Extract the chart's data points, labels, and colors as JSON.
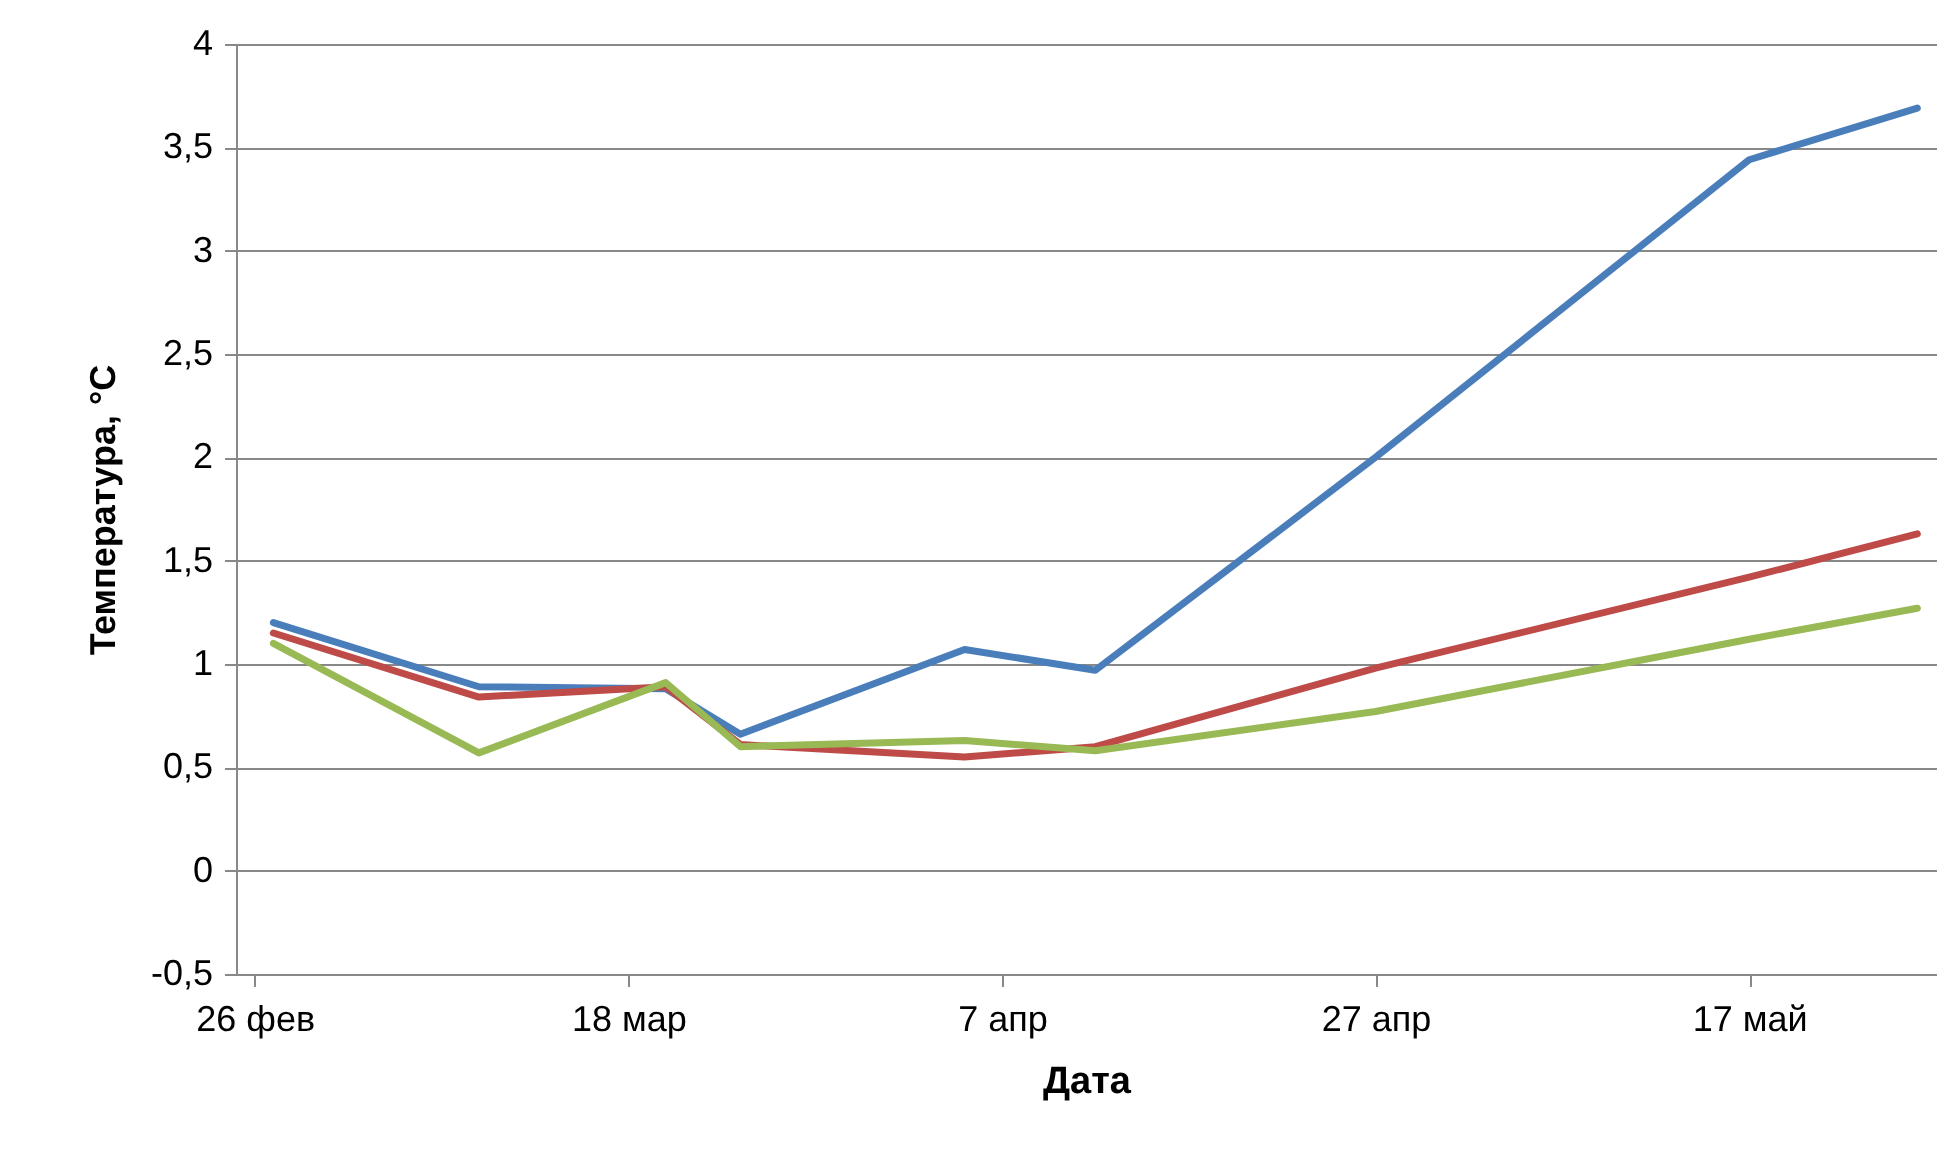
{
  "chart_data": {
    "type": "line",
    "xlabel": "Дата",
    "ylabel": "Температура, °С",
    "x": [
      "--02-27",
      "--03-10",
      "--03-20",
      "--03-24",
      "--04-05",
      "--04-12",
      "--04-27",
      "--05-17",
      "--05-26"
    ],
    "series": [
      {
        "color": "#4a7ebb",
        "values": [
          1.2,
          0.89,
          0.88,
          0.66,
          1.07,
          0.97,
          2.0,
          3.44,
          3.69
        ]
      },
      {
        "color": "#be4b48",
        "values": [
          1.15,
          0.84,
          0.89,
          0.61,
          0.55,
          0.6,
          0.98,
          1.42,
          1.63
        ]
      },
      {
        "color": "#98b954",
        "values": [
          1.1,
          0.57,
          0.91,
          0.6,
          0.63,
          0.58,
          0.77,
          1.12,
          1.27
        ]
      }
    ],
    "xlim": [
      "--02-25",
      "--05-27"
    ],
    "xticks": [
      {
        "value": "--02-26",
        "label": "26 фев"
      },
      {
        "value": "--03-18",
        "label": "18 мар"
      },
      {
        "value": "--04-07",
        "label": "7 апр"
      },
      {
        "value": "--04-27",
        "label": "27 апр"
      },
      {
        "value": "--05-17",
        "label": "17 май"
      }
    ],
    "ylim": [
      -0.5,
      4
    ],
    "yticks": [
      {
        "value": -0.5,
        "label": "-0,5"
      },
      0,
      {
        "value": 0.5,
        "label": "0,5"
      },
      1,
      {
        "value": 1.5,
        "label": "1,5"
      },
      2,
      {
        "value": 2.5,
        "label": "2,5"
      },
      3,
      {
        "value": 3.5,
        "label": "3,5"
      },
      4
    ],
    "grid": "y",
    "marker": "none",
    "line_style": "solid"
  }
}
